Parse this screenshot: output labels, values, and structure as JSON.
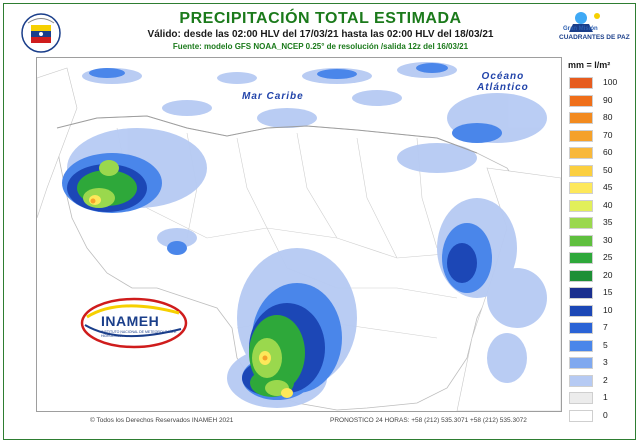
{
  "header": {
    "title": "PRECIPITACIÓN TOTAL ESTIMADA",
    "validity": "Válido: desde las 02:00 HLV del 17/03/21 hasta las 02:00 HLV del 18/03/21",
    "source": "Fuente: modelo GFS NOAA_NCEP 0.25° de resolución /salida 12z del 16/03/21"
  },
  "partner_logo": {
    "line1": "Gran Misión",
    "line2": "CUADRANTES DE PAZ"
  },
  "map": {
    "sea_label": "Mar Caribe",
    "ocean_label_1": "Océano",
    "ocean_label_2": "Atlántico",
    "precip_levels_mm": [
      0,
      1,
      2,
      3,
      5,
      7,
      10,
      15,
      20,
      25,
      30,
      35,
      40,
      45,
      50,
      60,
      70,
      80,
      90,
      100
    ]
  },
  "logo": {
    "name": "INAMEH",
    "subtitle": "INSTITUTO NACIONAL DE METEOROLOGÍA E HIDROLOGÍA"
  },
  "legend": {
    "title": "mm = l/m²",
    "items": [
      {
        "value": "100",
        "color": "#e65c1f"
      },
      {
        "value": "90",
        "color": "#ef6f1a"
      },
      {
        "value": "80",
        "color": "#f28a1f"
      },
      {
        "value": "70",
        "color": "#f5a12a"
      },
      {
        "value": "60",
        "color": "#f8b83a"
      },
      {
        "value": "50",
        "color": "#fbcf3f"
      },
      {
        "value": "45",
        "color": "#fde85a"
      },
      {
        "value": "40",
        "color": "#e2ef5a"
      },
      {
        "value": "35",
        "color": "#9ad84d"
      },
      {
        "value": "30",
        "color": "#5fbf3e"
      },
      {
        "value": "25",
        "color": "#2ea83a"
      },
      {
        "value": "20",
        "color": "#1d8f36"
      },
      {
        "value": "15",
        "color": "#1a2f8f"
      },
      {
        "value": "10",
        "color": "#1c47b6"
      },
      {
        "value": "7",
        "color": "#2a63d6"
      },
      {
        "value": "5",
        "color": "#4a86ea"
      },
      {
        "value": "3",
        "color": "#7fa8ef"
      },
      {
        "value": "2",
        "color": "#b6caf3"
      },
      {
        "value": "1",
        "color": "#ececec"
      },
      {
        "value": "0",
        "color": "#ffffff"
      }
    ]
  },
  "footer": {
    "copyright": "© Todos los Derechos Reservados INAMEH 2021",
    "forecast_phone": "PRONOSTICO 24 HORAS: +58 (212) 535.3071 +58 (212) 535.3072"
  }
}
